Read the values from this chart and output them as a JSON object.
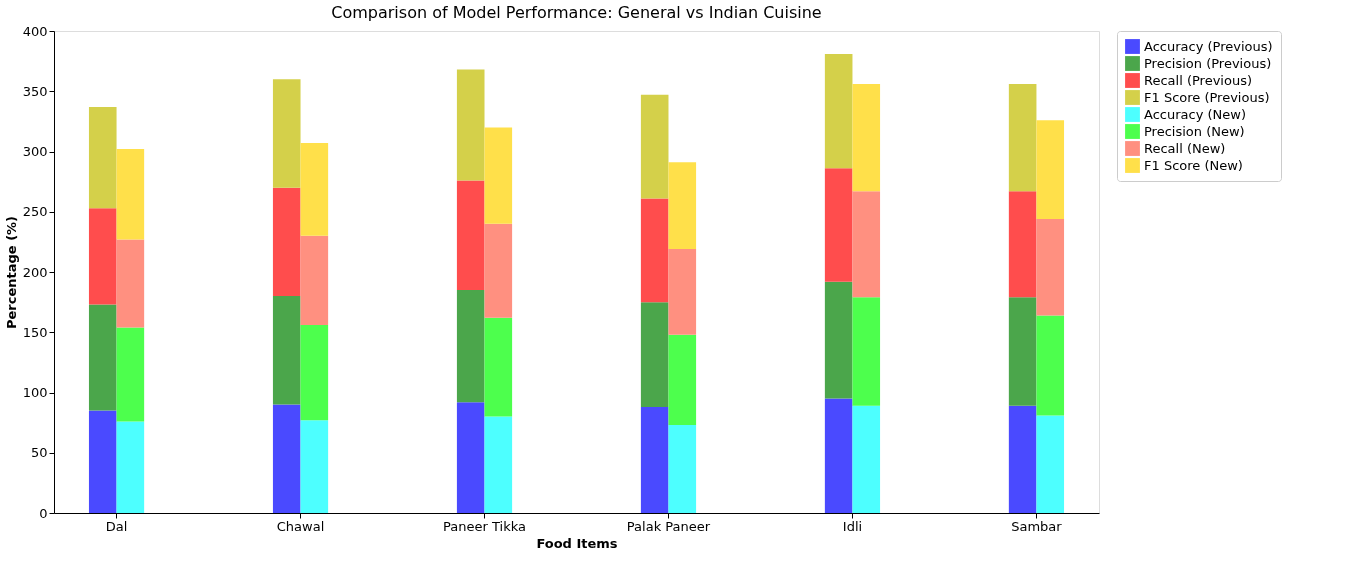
{
  "chart_data": {
    "type": "bar",
    "title": "Comparison of Model Performance: General vs Indian Cuisine",
    "xlabel": "Food Items",
    "ylabel": "Percentage (%)",
    "categories": [
      "Dal",
      "Chawal",
      "Paneer Tikka",
      "Palak Paneer",
      "Idli",
      "Sambar"
    ],
    "ylim": [
      0,
      400
    ],
    "yticks": [
      0,
      50,
      100,
      150,
      200,
      250,
      300,
      350,
      400
    ],
    "grid": false,
    "legend": "top right",
    "series": [
      {
        "name": "Accuracy (Previous)",
        "color": "#4a4aff",
        "base": [
          0,
          0,
          0,
          0,
          0,
          0
        ],
        "values": [
          85,
          90,
          92,
          88,
          95,
          89
        ]
      },
      {
        "name": "Precision (Previous)",
        "color": "#4ba64b",
        "base": [
          85,
          90,
          92,
          88,
          95,
          89
        ],
        "values": [
          88,
          90,
          93,
          87,
          97,
          90
        ]
      },
      {
        "name": "Recall (Previous)",
        "color": "#ff4d4d",
        "base": [
          173,
          180,
          185,
          175,
          192,
          179
        ],
        "values": [
          80,
          90,
          91,
          86,
          94,
          88
        ]
      },
      {
        "name": "F1 Score (Previous)",
        "color": "#d4d04a",
        "base": [
          253,
          270,
          276,
          261,
          286,
          267
        ],
        "values": [
          84,
          90,
          92,
          86,
          95,
          89
        ]
      },
      {
        "name": "Accuracy (New)",
        "color": "#4dffff",
        "base": [
          0,
          0,
          0,
          0,
          0,
          0
        ],
        "values": [
          76,
          77,
          80,
          73,
          89,
          81
        ]
      },
      {
        "name": "Precision (New)",
        "color": "#4dff4d",
        "base": [
          76,
          77,
          80,
          73,
          89,
          81
        ],
        "values": [
          78,
          79,
          82,
          75,
          90,
          83
        ]
      },
      {
        "name": "Recall (New)",
        "color": "#ff9080",
        "base": [
          154,
          156,
          162,
          148,
          179,
          164
        ],
        "values": [
          73,
          74,
          78,
          71,
          88,
          80
        ]
      },
      {
        "name": "F1 Score (New)",
        "color": "#ffe04a",
        "base": [
          227,
          230,
          240,
          219,
          267,
          244
        ],
        "values": [
          75,
          77,
          80,
          72,
          89,
          82
        ]
      }
    ]
  }
}
